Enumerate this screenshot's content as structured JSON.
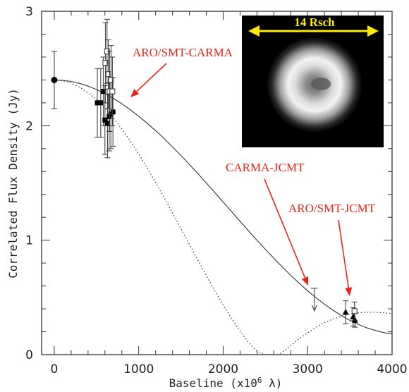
{
  "chart_data": {
    "type": "scatter",
    "xlabel_text": "Baseline (x10",
    "xlabel_sup": "6",
    "xlabel_unit": " λ)",
    "ylabel": "Correlated Flux Density (Jy)",
    "xlim": [
      -150,
      4000
    ],
    "ylim": [
      0,
      3
    ],
    "x_ticks": [
      0,
      1000,
      2000,
      3000,
      4000
    ],
    "y_ticks": [
      0,
      1,
      2,
      3
    ],
    "x_tick_labels": [
      "0",
      "1000",
      "2000",
      "3000",
      "4000"
    ],
    "y_tick_labels": [
      "0",
      "1",
      "2",
      "3"
    ],
    "grid": false,
    "colors": {
      "annotation": "#e8241b",
      "inset_arrow": "#ffea00",
      "curve": "#333333"
    },
    "models": [
      {
        "style": "solid",
        "x": [
          0,
          100,
          200,
          300,
          400,
          500,
          600,
          700,
          800,
          900,
          1000,
          1100,
          1200,
          1300,
          1400,
          1500,
          1600,
          1700,
          1800,
          1900,
          2000,
          2100,
          2200,
          2300,
          2400,
          2500,
          2600,
          2700,
          2800,
          2900,
          3000,
          3100,
          3200,
          3300,
          3400,
          3500,
          3600,
          3700,
          3800,
          3900,
          4000
        ],
        "y": [
          2.4,
          2.397,
          2.387,
          2.37,
          2.346,
          2.316,
          2.28,
          2.239,
          2.192,
          2.14,
          2.083,
          2.022,
          1.957,
          1.888,
          1.815,
          1.74,
          1.662,
          1.582,
          1.5,
          1.417,
          1.333,
          1.249,
          1.165,
          1.082,
          1.0,
          0.92,
          0.842,
          0.766,
          0.693,
          0.624,
          0.558,
          0.497,
          0.44,
          0.388,
          0.341,
          0.3,
          0.264,
          0.234,
          0.211,
          0.193,
          0.18
        ]
      },
      {
        "style": "dotted",
        "x": [
          0,
          100,
          200,
          300,
          400,
          500,
          600,
          700,
          800,
          900,
          1000,
          1100,
          1200,
          1300,
          1400,
          1500,
          1600,
          1700,
          1800,
          1900,
          2000,
          2100,
          2200,
          2300,
          2400,
          2500,
          2600,
          2650,
          2700,
          2800,
          2900,
          3000,
          3100,
          3200,
          3300,
          3400,
          3500,
          3600,
          3700,
          3800,
          3900,
          4000
        ],
        "y": [
          2.4,
          2.393,
          2.372,
          2.337,
          2.288,
          2.227,
          2.153,
          2.068,
          1.972,
          1.867,
          1.753,
          1.632,
          1.505,
          1.373,
          1.238,
          1.101,
          0.963,
          0.826,
          0.691,
          0.56,
          0.434,
          0.315,
          0.205,
          0.107,
          0.03,
          0.0,
          0.0,
          0.0,
          0.02,
          0.08,
          0.14,
          0.19,
          0.24,
          0.28,
          0.31,
          0.335,
          0.355,
          0.365,
          0.37,
          0.37,
          0.365,
          0.36
        ]
      }
    ],
    "series": [
      {
        "marker": "filled-circle",
        "points": [
          {
            "x": 0,
            "y": 2.4,
            "err": 0.25
          }
        ]
      },
      {
        "marker": "filled-square",
        "points": [
          {
            "x": 510,
            "y": 2.2,
            "err": 0.3
          },
          {
            "x": 550,
            "y": 2.2,
            "err": 0.3
          },
          {
            "x": 580,
            "y": 2.3,
            "err": 0.3
          },
          {
            "x": 600,
            "y": 2.05,
            "err": 0.3
          },
          {
            "x": 630,
            "y": 2.02,
            "err": 0.3
          },
          {
            "x": 650,
            "y": 2.08,
            "err": 0.3
          },
          {
            "x": 670,
            "y": 2.1,
            "err": 0.3
          },
          {
            "x": 695,
            "y": 2.12,
            "err": 0.3
          }
        ]
      },
      {
        "marker": "open-square",
        "points": [
          {
            "x": 605,
            "y": 2.55,
            "err": 0.35
          },
          {
            "x": 625,
            "y": 2.65,
            "err": 0.28
          },
          {
            "x": 640,
            "y": 2.45,
            "err": 0.3
          },
          {
            "x": 655,
            "y": 2.3,
            "err": 0.35
          },
          {
            "x": 672,
            "y": 2.4,
            "err": 0.3
          },
          {
            "x": 688,
            "y": 2.3,
            "err": 0.3
          }
        ]
      },
      {
        "marker": "filled-triangle",
        "points": [
          {
            "x": 3450,
            "y": 0.37,
            "err": 0.1
          },
          {
            "x": 3540,
            "y": 0.33,
            "err": 0.08
          },
          {
            "x": 3560,
            "y": 0.3,
            "err": 0.06
          }
        ]
      },
      {
        "marker": "open-square",
        "points": [
          {
            "x": 3555,
            "y": 0.38,
            "err": 0.08
          }
        ]
      },
      {
        "marker": "upper-limit",
        "points": [
          {
            "x": 3080,
            "y": 0.58
          }
        ]
      }
    ],
    "annotations": [
      {
        "text": "ARO/SMT-CARMA",
        "target": [
          700,
          2.25
        ]
      },
      {
        "text": "CARMA-JCMT",
        "target": [
          3000,
          0.6
        ]
      },
      {
        "text": "ARO/SMT-JCMT",
        "target": [
          3500,
          0.5
        ]
      }
    ],
    "inset": {
      "label": "14 Rsch"
    }
  }
}
